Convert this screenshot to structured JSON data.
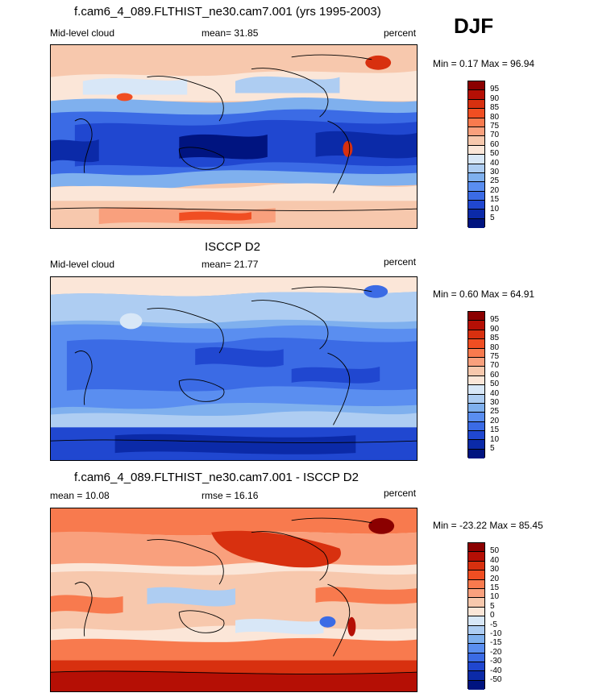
{
  "season": "DJF",
  "panels": [
    {
      "title": "f.cam6_4_089.FLTHIST_ne30.cam7.001 (yrs 1995-2003)",
      "left_label": "Mid-level cloud",
      "center_label": "mean=  31.85",
      "right_label": "percent",
      "minmax": "Min =   0.17 Max =  96.94",
      "levels": [
        "95",
        "90",
        "85",
        "80",
        "75",
        "70",
        "60",
        "50",
        "40",
        "30",
        "25",
        "20",
        "15",
        "10",
        "5"
      ],
      "colors": [
        "#8b0000",
        "#b50f05",
        "#d8300f",
        "#f04e22",
        "#f87a4e",
        "#f9a07d",
        "#f7c8ad",
        "#fbe6d8",
        "#d8e7f7",
        "#aecdf2",
        "#7fb0ee",
        "#5a8ef0",
        "#3b6be5",
        "#2047d0",
        "#0b2aa8",
        "#001480"
      ]
    },
    {
      "title": "ISCCP D2",
      "left_label": "Mid-level cloud",
      "center_label": "mean=  21.77",
      "right_label": "percent",
      "minmax": "Min =   0.60 Max =  64.91",
      "levels": [
        "95",
        "90",
        "85",
        "80",
        "75",
        "70",
        "60",
        "50",
        "40",
        "30",
        "25",
        "20",
        "15",
        "10",
        "5"
      ],
      "colors": [
        "#8b0000",
        "#b50f05",
        "#d8300f",
        "#f04e22",
        "#f87a4e",
        "#f9a07d",
        "#f7c8ad",
        "#fbe6d8",
        "#d8e7f7",
        "#aecdf2",
        "#7fb0ee",
        "#5a8ef0",
        "#3b6be5",
        "#2047d0",
        "#0b2aa8",
        "#001480"
      ]
    },
    {
      "title": "f.cam6_4_089.FLTHIST_ne30.cam7.001 - ISCCP D2",
      "left_label": "mean =  10.08",
      "center_label": "rmse =  16.16",
      "right_label": "percent",
      "minmax": "Min = -23.22 Max =  85.45",
      "levels": [
        "50",
        "40",
        "30",
        "20",
        "15",
        "10",
        "5",
        "0",
        "-5",
        "-10",
        "-15",
        "-20",
        "-30",
        "-40",
        "-50"
      ],
      "colors": [
        "#8b0000",
        "#b50f05",
        "#d8300f",
        "#f04e22",
        "#f87a4e",
        "#f9a07d",
        "#f7c8ad",
        "#fbe6d8",
        "#d8e7f7",
        "#aecdf2",
        "#7fb0ee",
        "#5a8ef0",
        "#3b6be5",
        "#2047d0",
        "#0b2aa8",
        "#001480"
      ]
    }
  ]
}
